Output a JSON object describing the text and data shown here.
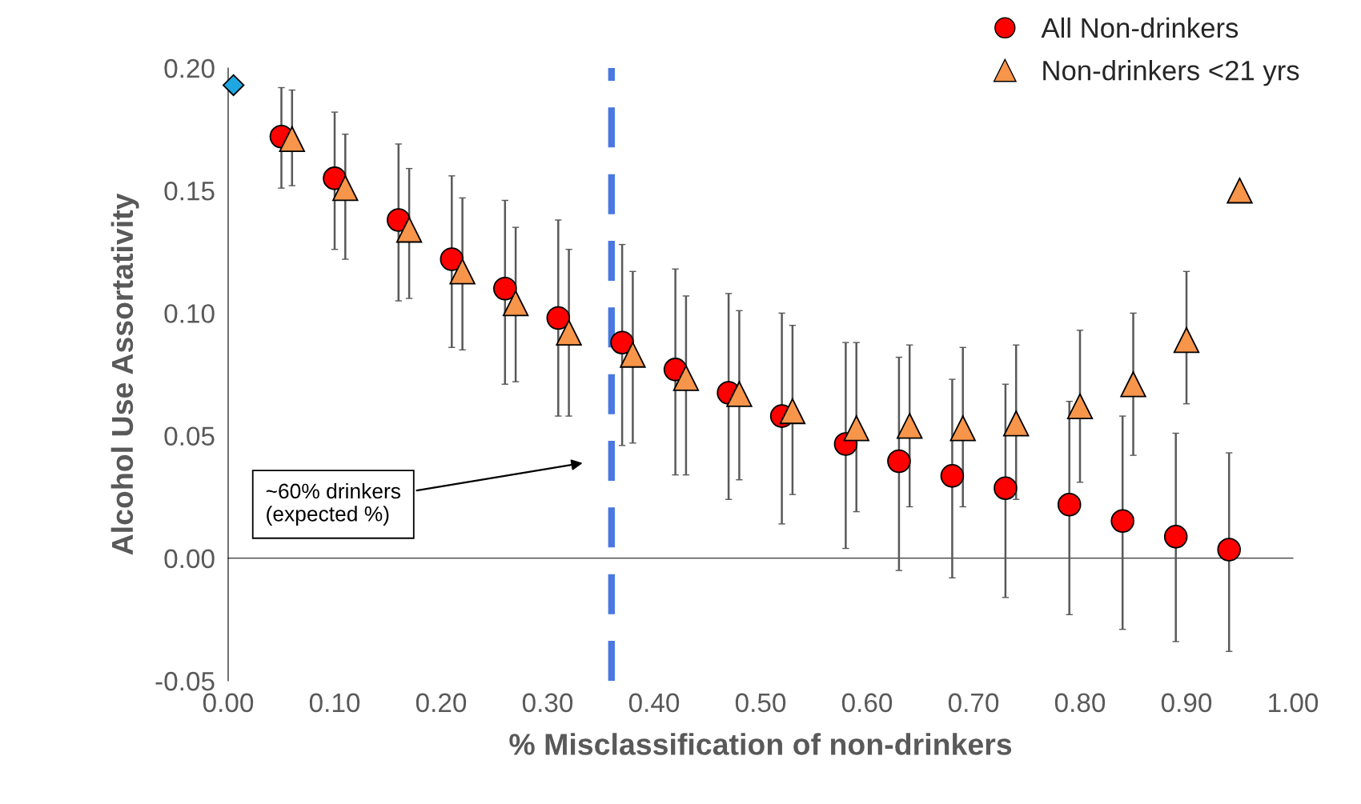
{
  "chart_data": {
    "type": "scatter",
    "xlabel": "% Misclassification of non-drinkers",
    "ylabel": "Alcohol Use Assortativity",
    "xlim": [
      0,
      1.0
    ],
    "ylim": [
      -0.05,
      0.2
    ],
    "xticks": [
      {
        "value": 0,
        "label": "0.00"
      },
      {
        "value": 0.1,
        "label": "0.10"
      },
      {
        "value": 0.2,
        "label": "0.20"
      },
      {
        "value": 0.3,
        "label": "0.30"
      },
      {
        "value": 0.4,
        "label": "0.40"
      },
      {
        "value": 0.5,
        "label": "0.50"
      },
      {
        "value": 0.6,
        "label": "0.60"
      },
      {
        "value": 0.7,
        "label": "0.70"
      },
      {
        "value": 0.8,
        "label": "0.80"
      },
      {
        "value": 0.9,
        "label": "0.90"
      },
      {
        "value": 1.0,
        "label": "1.00"
      }
    ],
    "yticks": [
      {
        "value": -0.05,
        "label": "-0.05"
      },
      {
        "value": 0,
        "label": "0.00"
      },
      {
        "value": 0.05,
        "label": "0.05"
      },
      {
        "value": 0.1,
        "label": "0.10"
      },
      {
        "value": 0.15,
        "label": "0.15"
      },
      {
        "value": 0.2,
        "label": "0.20"
      }
    ],
    "legend": "top right",
    "series": [
      {
        "color": "#1ea7e0",
        "marker": "diamond",
        "x": [
          0.005
        ],
        "values": [
          0.193
        ]
      },
      {
        "name": "All Non-drinkers",
        "color": "#ff0000",
        "marker": "circle",
        "x": [
          0.05,
          0.1,
          0.16,
          0.21,
          0.26,
          0.31,
          0.37,
          0.42,
          0.47,
          0.52,
          0.58,
          0.63,
          0.68,
          0.73,
          0.79,
          0.84,
          0.89,
          0.94
        ],
        "values": [
          0.172,
          0.155,
          0.138,
          0.122,
          0.11,
          0.098,
          0.088,
          0.077,
          0.0675,
          0.058,
          0.0466,
          0.0396,
          0.0336,
          0.0286,
          0.0219,
          0.0152,
          0.0088,
          0.0035
        ],
        "errors": [
          [
            0.151,
            0.192
          ],
          [
            0.126,
            0.182
          ],
          [
            0.105,
            0.169
          ],
          [
            0.086,
            0.156
          ],
          [
            0.071,
            0.146
          ],
          [
            0.058,
            0.138
          ],
          [
            0.046,
            0.128
          ],
          [
            0.034,
            0.118
          ],
          [
            0.024,
            0.108
          ],
          [
            0.014,
            0.1
          ],
          [
            0.004,
            0.088
          ],
          [
            -0.005,
            0.082
          ],
          [
            -0.008,
            0.073
          ],
          [
            -0.016,
            0.071
          ],
          [
            -0.023,
            0.064
          ],
          [
            -0.029,
            0.058
          ],
          [
            -0.034,
            0.051
          ],
          [
            -0.038,
            0.043
          ]
        ]
      },
      {
        "name": "Non-drinkers <21 yrs",
        "color": "#f7954a",
        "marker": "triangle",
        "x": [
          0.06,
          0.11,
          0.17,
          0.22,
          0.27,
          0.32,
          0.38,
          0.43,
          0.48,
          0.53,
          0.59,
          0.64,
          0.69,
          0.74,
          0.8,
          0.85,
          0.9,
          0.95
        ],
        "values": [
          0.171,
          0.151,
          0.134,
          0.117,
          0.104,
          0.092,
          0.083,
          0.0735,
          0.067,
          0.06,
          0.053,
          0.054,
          0.053,
          0.055,
          0.062,
          0.071,
          0.089,
          0.15
        ],
        "errors": [
          [
            0.152,
            0.191
          ],
          [
            0.122,
            0.173
          ],
          [
            0.106,
            0.159
          ],
          [
            0.085,
            0.147
          ],
          [
            0.072,
            0.135
          ],
          [
            0.058,
            0.126
          ],
          [
            0.047,
            0.117
          ],
          [
            0.034,
            0.107
          ],
          [
            0.032,
            0.101
          ],
          [
            0.026,
            0.095
          ],
          [
            0.019,
            0.088
          ],
          [
            0.021,
            0.087
          ],
          [
            0.021,
            0.086
          ],
          [
            0.024,
            0.087
          ],
          [
            0.031,
            0.093
          ],
          [
            0.042,
            0.1
          ],
          [
            0.063,
            0.117
          ],
          null
        ]
      }
    ],
    "ref_lines": [
      {
        "axis": "x",
        "value": 0.36,
        "color": "#4a78e0",
        "line_style": "dashed"
      }
    ],
    "annotations": [
      "~60% drinkers\n(expected %)"
    ]
  }
}
